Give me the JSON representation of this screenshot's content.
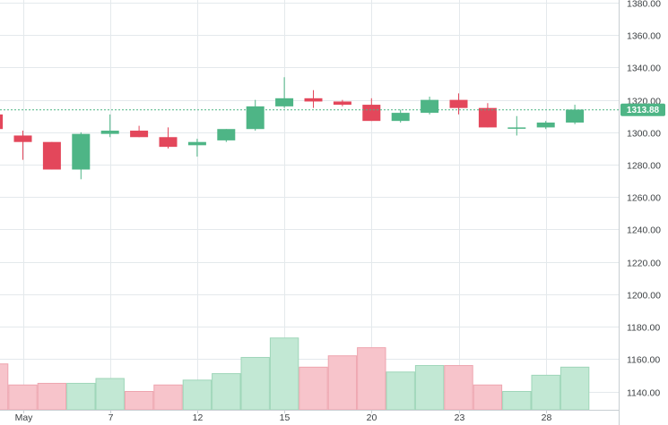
{
  "chart_data": {
    "type": "candlestick",
    "title": "",
    "xlabel": "",
    "ylabel": "",
    "ylim": [
      1128,
      1382
    ],
    "y_ticks": [
      "1140.00",
      "1160.00",
      "1180.00",
      "1200.00",
      "1220.00",
      "1240.00",
      "1260.00",
      "1280.00",
      "1300.00",
      "1320.00",
      "1340.00",
      "1360.00",
      "1380.00"
    ],
    "y_tick_values": [
      1140,
      1160,
      1180,
      1200,
      1220,
      1240,
      1260,
      1280,
      1300,
      1320,
      1340,
      1360,
      1380
    ],
    "x_ticks": [
      {
        "label": "May",
        "index": 0
      },
      {
        "label": "7",
        "index": 3
      },
      {
        "label": "12",
        "index": 6
      },
      {
        "label": "15",
        "index": 9
      },
      {
        "label": "20",
        "index": 12
      },
      {
        "label": "23",
        "index": 15
      },
      {
        "label": "28",
        "index": 18
      }
    ],
    "current_price": {
      "label": "1313.88",
      "value": 1313.88
    },
    "colors": {
      "up": "#4eb586",
      "down": "#e3475b",
      "up_volume": "#c2e8d4",
      "down_volume": "#f7c4cb",
      "badge": "#4eb586",
      "price_line": "#4eb586"
    },
    "candles": [
      {
        "open": 1298,
        "high": 1301,
        "low": 1283,
        "close": 1294
      },
      {
        "open": 1294,
        "high": 1294,
        "low": 1277,
        "close": 1277
      },
      {
        "open": 1277,
        "high": 1300,
        "low": 1271,
        "close": 1299
      },
      {
        "open": 1299,
        "high": 1311,
        "low": 1297,
        "close": 1301
      },
      {
        "open": 1301,
        "high": 1304,
        "low": 1297,
        "close": 1297
      },
      {
        "open": 1297,
        "high": 1303,
        "low": 1290,
        "close": 1291
      },
      {
        "open": 1292,
        "high": 1296,
        "low": 1285,
        "close": 1294
      },
      {
        "open": 1295,
        "high": 1302,
        "low": 1294,
        "close": 1302
      },
      {
        "open": 1302,
        "high": 1320,
        "low": 1301,
        "close": 1316
      },
      {
        "open": 1316,
        "high": 1334,
        "low": 1315,
        "close": 1321
      },
      {
        "open": 1321,
        "high": 1326,
        "low": 1315,
        "close": 1319
      },
      {
        "open": 1319,
        "high": 1320,
        "low": 1316,
        "close": 1317
      },
      {
        "open": 1317,
        "high": 1321,
        "low": 1307,
        "close": 1307
      },
      {
        "open": 1307,
        "high": 1314,
        "low": 1306,
        "close": 1312
      },
      {
        "open": 1312,
        "high": 1322,
        "low": 1311,
        "close": 1320
      },
      {
        "open": 1320,
        "high": 1324,
        "low": 1311,
        "close": 1315
      },
      {
        "open": 1315,
        "high": 1318,
        "low": 1303,
        "close": 1303
      },
      {
        "open": 1303,
        "high": 1310,
        "low": 1298,
        "close": 1303
      },
      {
        "open": 1303,
        "high": 1307,
        "low": 1302,
        "close": 1306
      },
      {
        "open": 1306,
        "high": 1317,
        "low": 1305,
        "close": 1314
      }
    ],
    "volume": [
      {
        "value": 1144,
        "dir": "down"
      },
      {
        "value": 1145,
        "dir": "down"
      },
      {
        "value": 1145,
        "dir": "up"
      },
      {
        "value": 1148,
        "dir": "up"
      },
      {
        "value": 1140,
        "dir": "down"
      },
      {
        "value": 1144,
        "dir": "down"
      },
      {
        "value": 1147,
        "dir": "up"
      },
      {
        "value": 1151,
        "dir": "up"
      },
      {
        "value": 1161,
        "dir": "up"
      },
      {
        "value": 1173,
        "dir": "up"
      },
      {
        "value": 1155,
        "dir": "down"
      },
      {
        "value": 1162,
        "dir": "down"
      },
      {
        "value": 1167,
        "dir": "down"
      },
      {
        "value": 1152,
        "dir": "up"
      },
      {
        "value": 1156,
        "dir": "up"
      },
      {
        "value": 1156,
        "dir": "down"
      },
      {
        "value": 1144,
        "dir": "down"
      },
      {
        "value": 1140,
        "dir": "up"
      },
      {
        "value": 1150,
        "dir": "up"
      },
      {
        "value": 1155,
        "dir": "up"
      }
    ],
    "partial_left": {
      "candle": {
        "open": 1311,
        "high": 1311,
        "low": 1302,
        "close": 1302
      },
      "volume": {
        "value": 1157,
        "dir": "down"
      }
    }
  }
}
